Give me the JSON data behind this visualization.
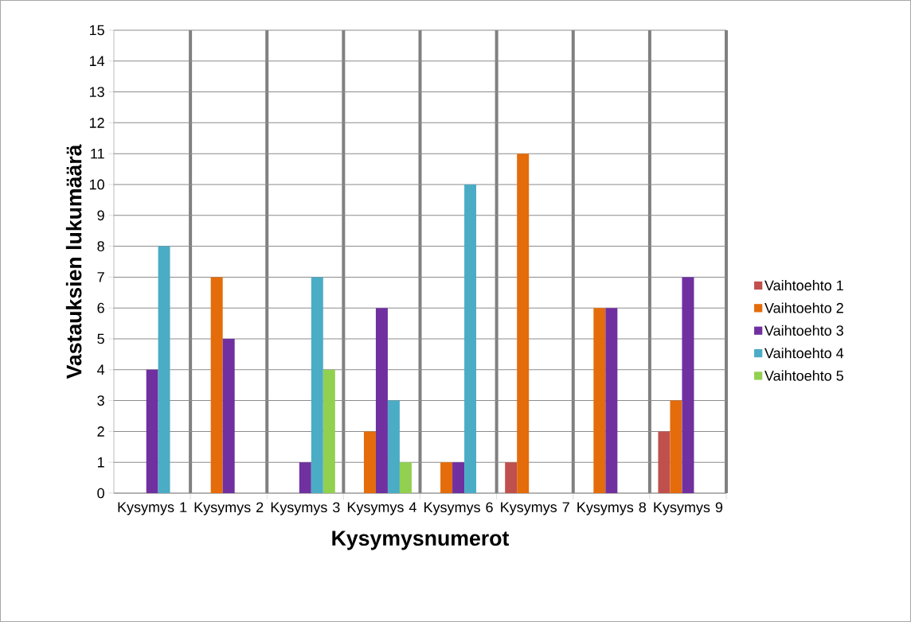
{
  "chart_data": {
    "type": "bar",
    "xlabel": "Kysymysnumerot",
    "ylabel": "Vastauksien lukumäärä",
    "categories": [
      "Kysymys 1",
      "Kysymys 2",
      "Kysymys 3",
      "Kysymys 4",
      "Kysymys 6",
      "Kysymys 7",
      "Kysymys 8",
      "Kysymys 9"
    ],
    "series": [
      {
        "name": "Vaihtoehto 1",
        "color": "#c0504d",
        "values": [
          null,
          null,
          null,
          null,
          null,
          1,
          null,
          2
        ]
      },
      {
        "name": "Vaihtoehto 2",
        "color": "#e46c0a",
        "values": [
          null,
          7,
          null,
          2,
          1,
          11,
          6,
          3
        ]
      },
      {
        "name": "Vaihtoehto 3",
        "color": "#7030a0",
        "values": [
          4,
          5,
          1,
          6,
          1,
          null,
          6,
          7
        ]
      },
      {
        "name": "Vaihtoehto 4",
        "color": "#4bacc6",
        "values": [
          8,
          null,
          7,
          3,
          10,
          null,
          null,
          null
        ]
      },
      {
        "name": "Vaihtoehto 5",
        "color": "#92d050",
        "values": [
          null,
          null,
          4,
          1,
          null,
          null,
          null,
          null
        ]
      }
    ],
    "ylim": [
      0,
      15
    ],
    "yticks": [
      0,
      1,
      2,
      3,
      4,
      5,
      6,
      7,
      8,
      9,
      10,
      11,
      12,
      13,
      14,
      15
    ],
    "grid": true,
    "legend": "right"
  }
}
